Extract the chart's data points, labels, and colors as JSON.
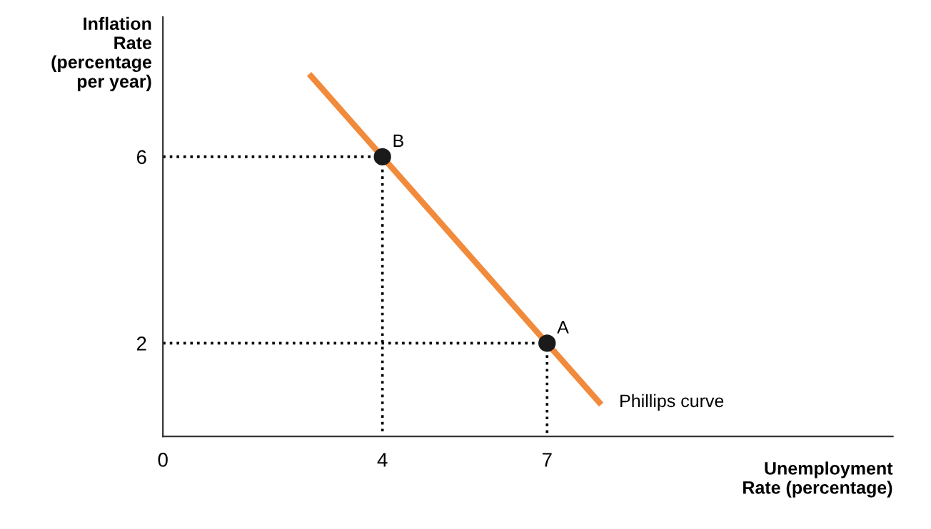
{
  "chart_data": {
    "type": "line",
    "xlabel": "Unemployment\nRate (percentage)",
    "ylabel": "Inflation\nRate\n(percentage\nper year)",
    "xlim": [
      0,
      13.3
    ],
    "ylim": [
      0,
      9
    ],
    "xticks": [
      0,
      4,
      7
    ],
    "yticks": [
      2,
      6
    ],
    "grid": false,
    "legend": false,
    "series": [
      {
        "color": "#000000",
        "line_style": "dotted",
        "marker": "none",
        "x": [
          0,
          4,
          4
        ],
        "values": [
          6,
          6,
          0
        ]
      },
      {
        "color": "#000000",
        "line_style": "dotted",
        "marker": "none",
        "x": [
          0,
          7,
          7
        ],
        "values": [
          2,
          2,
          0
        ]
      },
      {
        "name": "Phillips curve",
        "color": "#f28a3c",
        "line_style": "solid",
        "marker": "none",
        "x": [
          2.7,
          7.95
        ],
        "values": [
          7.73,
          0.73
        ]
      },
      {
        "type": "scatter",
        "color": "#1a1a1a",
        "marker": "circle",
        "x": [
          4,
          7
        ],
        "values": [
          6,
          2
        ]
      }
    ],
    "annotations": [
      {
        "text": "B",
        "x": 4,
        "y": 6
      },
      {
        "text": "A",
        "x": 7,
        "y": 2
      }
    ]
  }
}
